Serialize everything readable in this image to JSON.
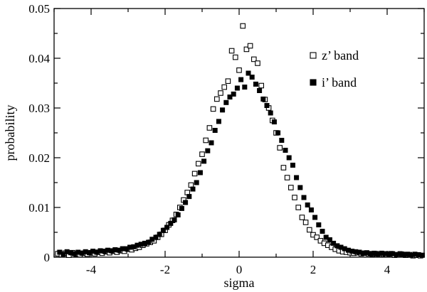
{
  "chart_data": {
    "type": "scatter",
    "title": "",
    "xlabel": "sigma",
    "ylabel": "probability",
    "xlim": [
      -5,
      5
    ],
    "ylim": [
      0,
      0.05
    ],
    "xticks": [
      -4,
      -2,
      0,
      2,
      4
    ],
    "xtick_labels": [
      "-4",
      "-2",
      "0",
      "2",
      "4"
    ],
    "yticks": [
      0,
      0.01,
      0.02,
      0.03,
      0.04,
      0.05
    ],
    "ytick_labels": [
      "0",
      "0.01",
      "0.02",
      "0.03",
      "0.04",
      "0.05"
    ],
    "grid": false,
    "legend_position": "top-right",
    "series": [
      {
        "name": "z’ band",
        "marker": "open-square",
        "color": "#000000",
        "points": [
          [
            -4.9,
            0.0007
          ],
          [
            -4.8,
            0.0005
          ],
          [
            -4.7,
            0.0008
          ],
          [
            -4.6,
            0.0004
          ],
          [
            -4.5,
            0.0009
          ],
          [
            -4.4,
            0.0006
          ],
          [
            -4.3,
            0.0005
          ],
          [
            -4.2,
            0.0008
          ],
          [
            -4.1,
            0.0006
          ],
          [
            -4.0,
            0.0009
          ],
          [
            -3.9,
            0.0007
          ],
          [
            -3.8,
            0.001
          ],
          [
            -3.7,
            0.0008
          ],
          [
            -3.6,
            0.0011
          ],
          [
            -3.5,
            0.0009
          ],
          [
            -3.4,
            0.0012
          ],
          [
            -3.3,
            0.001
          ],
          [
            -3.2,
            0.0013
          ],
          [
            -3.1,
            0.0012
          ],
          [
            -3.0,
            0.0016
          ],
          [
            -2.9,
            0.0015
          ],
          [
            -2.8,
            0.0018
          ],
          [
            -2.7,
            0.002
          ],
          [
            -2.6,
            0.0024
          ],
          [
            -2.5,
            0.0027
          ],
          [
            -2.4,
            0.003
          ],
          [
            -2.3,
            0.0033
          ],
          [
            -2.2,
            0.004
          ],
          [
            -2.1,
            0.0046
          ],
          [
            -2.0,
            0.0054
          ],
          [
            -1.9,
            0.0065
          ],
          [
            -1.8,
            0.0074
          ],
          [
            -1.7,
            0.0086
          ],
          [
            -1.6,
            0.01
          ],
          [
            -1.5,
            0.0115
          ],
          [
            -1.4,
            0.013
          ],
          [
            -1.3,
            0.0145
          ],
          [
            -1.2,
            0.0168
          ],
          [
            -1.1,
            0.0188
          ],
          [
            -1.0,
            0.0207
          ],
          [
            -0.9,
            0.0235
          ],
          [
            -0.8,
            0.026
          ],
          [
            -0.7,
            0.0298
          ],
          [
            -0.6,
            0.0318
          ],
          [
            -0.5,
            0.033
          ],
          [
            -0.4,
            0.0342
          ],
          [
            -0.3,
            0.0354
          ],
          [
            -0.2,
            0.0415
          ],
          [
            -0.1,
            0.0402
          ],
          [
            0.0,
            0.0376
          ],
          [
            0.1,
            0.0465
          ],
          [
            0.2,
            0.0418
          ],
          [
            0.3,
            0.0425
          ],
          [
            0.4,
            0.0398
          ],
          [
            0.5,
            0.039
          ],
          [
            0.6,
            0.0345
          ],
          [
            0.7,
            0.0317
          ],
          [
            0.8,
            0.03
          ],
          [
            0.9,
            0.0275
          ],
          [
            1.0,
            0.025
          ],
          [
            1.1,
            0.022
          ],
          [
            1.2,
            0.018
          ],
          [
            1.3,
            0.016
          ],
          [
            1.4,
            0.014
          ],
          [
            1.5,
            0.012
          ],
          [
            1.6,
            0.01
          ],
          [
            1.7,
            0.008
          ],
          [
            1.8,
            0.007
          ],
          [
            1.9,
            0.0055
          ],
          [
            2.0,
            0.0045
          ],
          [
            2.1,
            0.004
          ],
          [
            2.2,
            0.0033
          ],
          [
            2.3,
            0.0028
          ],
          [
            2.4,
            0.0024
          ],
          [
            2.5,
            0.002
          ],
          [
            2.6,
            0.0016
          ],
          [
            2.7,
            0.0013
          ],
          [
            2.8,
            0.0011
          ],
          [
            2.9,
            0.001
          ],
          [
            3.0,
            0.0009
          ],
          [
            3.1,
            0.0008
          ],
          [
            3.2,
            0.0009
          ],
          [
            3.3,
            0.0007
          ],
          [
            3.4,
            0.0008
          ],
          [
            3.5,
            0.0007
          ],
          [
            3.6,
            0.0006
          ],
          [
            3.7,
            0.0007
          ],
          [
            3.8,
            0.0005
          ],
          [
            3.9,
            0.0006
          ],
          [
            4.0,
            0.0005
          ],
          [
            4.1,
            0.0007
          ],
          [
            4.2,
            0.0004
          ],
          [
            4.3,
            0.0005
          ],
          [
            4.4,
            0.0006
          ],
          [
            4.5,
            0.0004
          ],
          [
            4.6,
            0.0005
          ],
          [
            4.7,
            0.0003
          ],
          [
            4.8,
            0.0004
          ],
          [
            4.9,
            0.0003
          ]
        ]
      },
      {
        "name": "i’ band",
        "marker": "filled-square",
        "color": "#000000",
        "points": [
          [
            -4.85,
            0.001
          ],
          [
            -4.75,
            0.0006
          ],
          [
            -4.65,
            0.0011
          ],
          [
            -4.55,
            0.0009
          ],
          [
            -4.45,
            0.0007
          ],
          [
            -4.35,
            0.001
          ],
          [
            -4.25,
            0.0008
          ],
          [
            -4.15,
            0.0011
          ],
          [
            -4.05,
            0.0009
          ],
          [
            -3.95,
            0.0012
          ],
          [
            -3.85,
            0.001
          ],
          [
            -3.75,
            0.0013
          ],
          [
            -3.65,
            0.0012
          ],
          [
            -3.55,
            0.0014
          ],
          [
            -3.45,
            0.0013
          ],
          [
            -3.35,
            0.0015
          ],
          [
            -3.25,
            0.0014
          ],
          [
            -3.15,
            0.0017
          ],
          [
            -3.05,
            0.0017
          ],
          [
            -2.95,
            0.002
          ],
          [
            -2.85,
            0.0021
          ],
          [
            -2.75,
            0.0024
          ],
          [
            -2.65,
            0.0026
          ],
          [
            -2.55,
            0.0028
          ],
          [
            -2.45,
            0.003
          ],
          [
            -2.35,
            0.0036
          ],
          [
            -2.25,
            0.004
          ],
          [
            -2.15,
            0.0046
          ],
          [
            -2.05,
            0.0054
          ],
          [
            -1.95,
            0.006
          ],
          [
            -1.85,
            0.0068
          ],
          [
            -1.75,
            0.0075
          ],
          [
            -1.65,
            0.0085
          ],
          [
            -1.55,
            0.0098
          ],
          [
            -1.45,
            0.011
          ],
          [
            -1.35,
            0.0122
          ],
          [
            -1.25,
            0.0137
          ],
          [
            -1.15,
            0.015
          ],
          [
            -1.05,
            0.017
          ],
          [
            -0.95,
            0.0193
          ],
          [
            -0.85,
            0.0214
          ],
          [
            -0.75,
            0.023
          ],
          [
            -0.65,
            0.0255
          ],
          [
            -0.55,
            0.0273
          ],
          [
            -0.45,
            0.0296
          ],
          [
            -0.35,
            0.0311
          ],
          [
            -0.25,
            0.0322
          ],
          [
            -0.15,
            0.0328
          ],
          [
            -0.05,
            0.034
          ],
          [
            0.05,
            0.0357
          ],
          [
            0.15,
            0.0342
          ],
          [
            0.25,
            0.037
          ],
          [
            0.35,
            0.0362
          ],
          [
            0.45,
            0.0348
          ],
          [
            0.55,
            0.0335
          ],
          [
            0.65,
            0.0318
          ],
          [
            0.75,
            0.0305
          ],
          [
            0.85,
            0.029
          ],
          [
            0.95,
            0.0272
          ],
          [
            1.05,
            0.025
          ],
          [
            1.15,
            0.0235
          ],
          [
            1.25,
            0.0215
          ],
          [
            1.35,
            0.02
          ],
          [
            1.45,
            0.0185
          ],
          [
            1.55,
            0.016
          ],
          [
            1.65,
            0.014
          ],
          [
            1.75,
            0.012
          ],
          [
            1.85,
            0.0105
          ],
          [
            1.95,
            0.0095
          ],
          [
            2.05,
            0.008
          ],
          [
            2.15,
            0.0065
          ],
          [
            2.25,
            0.0052
          ],
          [
            2.35,
            0.004
          ],
          [
            2.45,
            0.0035
          ],
          [
            2.55,
            0.0028
          ],
          [
            2.65,
            0.0023
          ],
          [
            2.75,
            0.002
          ],
          [
            2.85,
            0.0017
          ],
          [
            2.95,
            0.0014
          ],
          [
            3.05,
            0.0012
          ],
          [
            3.15,
            0.0011
          ],
          [
            3.25,
            0.001
          ],
          [
            3.35,
            0.0008
          ],
          [
            3.45,
            0.0009
          ],
          [
            3.55,
            0.0007
          ],
          [
            3.65,
            0.0008
          ],
          [
            3.75,
            0.0006
          ],
          [
            3.85,
            0.0008
          ],
          [
            3.95,
            0.0007
          ],
          [
            4.05,
            0.0006
          ],
          [
            4.15,
            0.0007
          ],
          [
            4.25,
            0.0005
          ],
          [
            4.35,
            0.0007
          ],
          [
            4.45,
            0.0005
          ],
          [
            4.55,
            0.0006
          ],
          [
            4.65,
            0.0004
          ],
          [
            4.75,
            0.0006
          ],
          [
            4.85,
            0.0005
          ],
          [
            4.95,
            0.0004
          ]
        ]
      }
    ]
  }
}
